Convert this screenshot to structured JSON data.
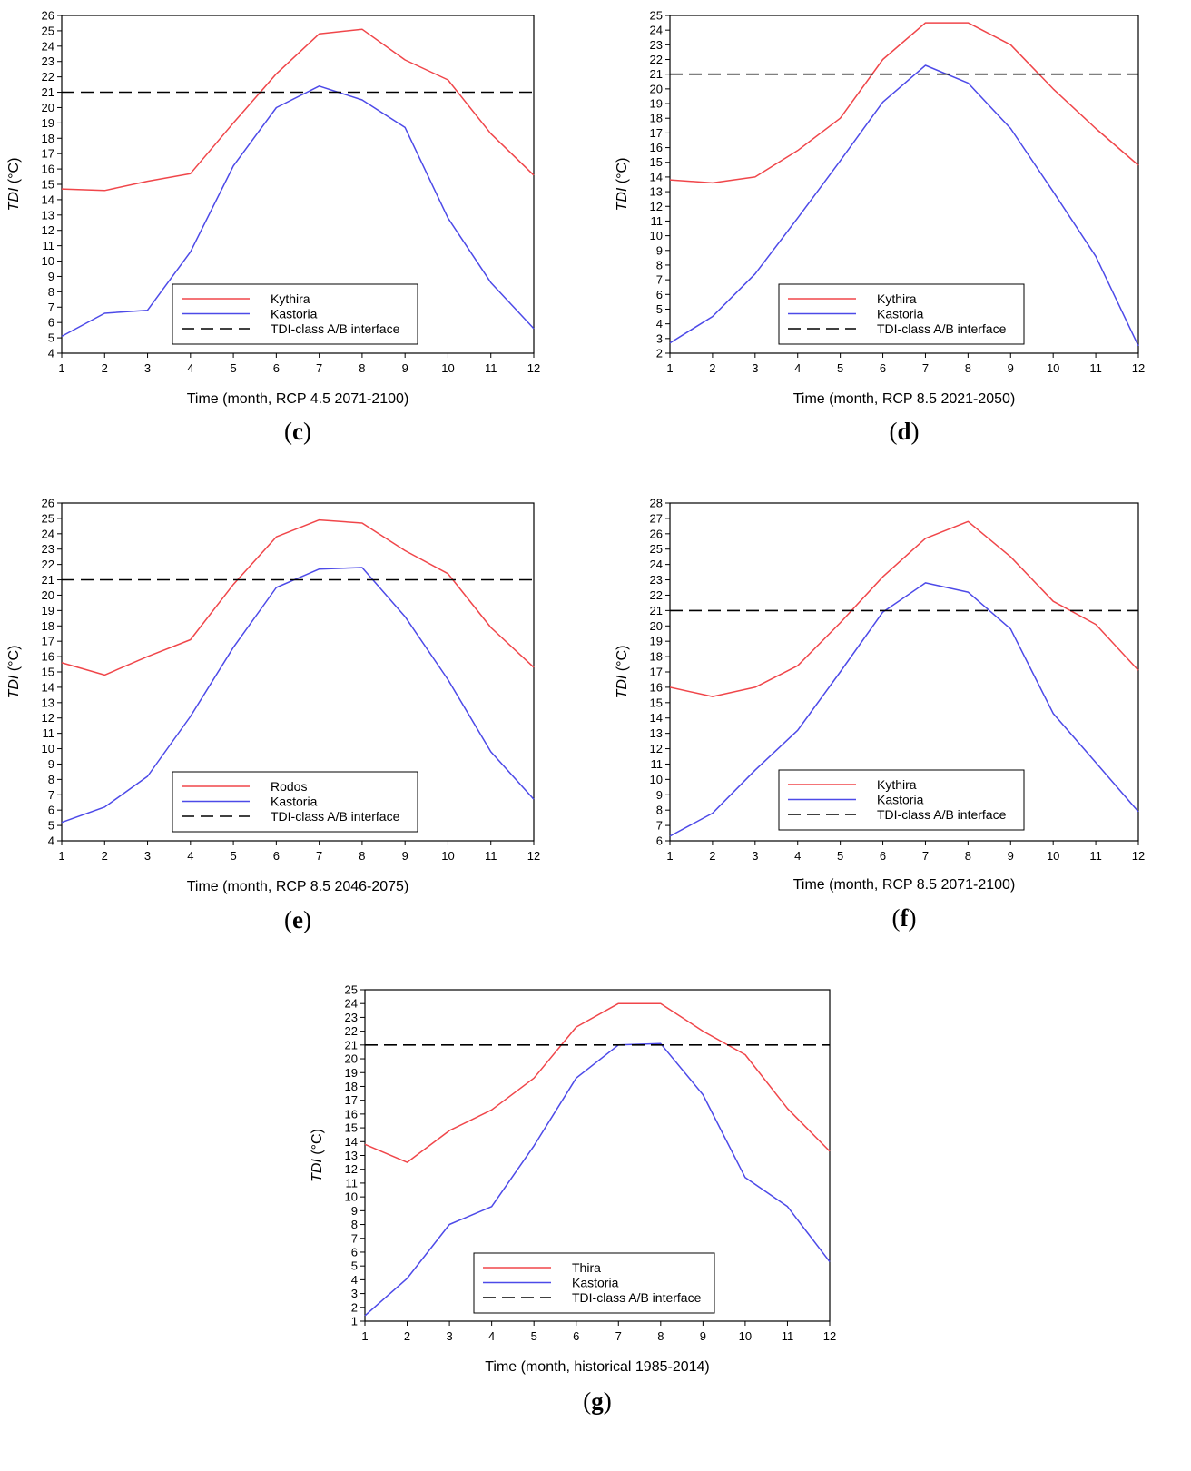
{
  "figure": {
    "ylabel_var": "TDI",
    "ylabel_unit": " (°C)",
    "threshold_value": 21
  },
  "colors": {
    "series1": "#f0464a",
    "series2": "#4d4ae8",
    "threshold": "#000000",
    "axes": "#000000",
    "background": "#ffffff"
  },
  "chart_data": [
    {
      "type": "line",
      "panel": "c",
      "caption_letter": "c",
      "title": "",
      "xlabel": "Time (month, RCP 4.5 2071-2100)",
      "ylabel": "TDI (°C)",
      "x": [
        1,
        2,
        3,
        4,
        5,
        6,
        7,
        8,
        9,
        10,
        11,
        12
      ],
      "ylim": [
        4,
        26
      ],
      "legend_position": "bottom-center",
      "series": [
        {
          "name": "Kythira",
          "style": "solid",
          "color_key": "series1",
          "values": [
            14.7,
            14.6,
            15.2,
            15.7,
            19.0,
            22.2,
            24.8,
            25.1,
            23.1,
            21.8,
            18.3,
            15.6
          ]
        },
        {
          "name": "Kastoria",
          "style": "solid",
          "color_key": "series2",
          "values": [
            5.1,
            6.6,
            6.8,
            10.6,
            16.2,
            20.0,
            21.4,
            20.5,
            18.7,
            12.8,
            8.6,
            5.6
          ]
        },
        {
          "name": "TDI-class A/B interface",
          "style": "dashed",
          "color_key": "threshold",
          "values": [
            21,
            21,
            21,
            21,
            21,
            21,
            21,
            21,
            21,
            21,
            21,
            21
          ]
        }
      ]
    },
    {
      "type": "line",
      "panel": "d",
      "caption_letter": "d",
      "title": "",
      "xlabel": "Time (month, RCP 8.5 2021-2050)",
      "ylabel": "TDI (°C)",
      "x": [
        1,
        2,
        3,
        4,
        5,
        6,
        7,
        8,
        9,
        10,
        11,
        12
      ],
      "ylim": [
        2,
        25
      ],
      "legend_position": "bottom-center",
      "series": [
        {
          "name": "Kythira",
          "style": "solid",
          "color_key": "series1",
          "values": [
            13.8,
            13.6,
            14.0,
            15.8,
            18.0,
            22.0,
            24.5,
            24.5,
            23.0,
            20.0,
            17.3,
            14.8
          ]
        },
        {
          "name": "Kastoria",
          "style": "solid",
          "color_key": "series2",
          "values": [
            2.7,
            4.5,
            7.4,
            11.2,
            15.1,
            19.1,
            21.6,
            20.4,
            17.3,
            13.0,
            8.6,
            2.5
          ]
        },
        {
          "name": "TDI-class A/B interface",
          "style": "dashed",
          "color_key": "threshold",
          "values": [
            21,
            21,
            21,
            21,
            21,
            21,
            21,
            21,
            21,
            21,
            21,
            21
          ]
        }
      ]
    },
    {
      "type": "line",
      "panel": "e",
      "caption_letter": "e",
      "title": "",
      "xlabel": "Time (month, RCP 8.5 2046-2075)",
      "ylabel": "TDI (°C)",
      "x": [
        1,
        2,
        3,
        4,
        5,
        6,
        7,
        8,
        9,
        10,
        11,
        12
      ],
      "ylim": [
        4,
        26
      ],
      "legend_position": "bottom-center",
      "series": [
        {
          "name": "Rodos",
          "style": "solid",
          "color_key": "series1",
          "values": [
            15.6,
            14.8,
            16.0,
            17.1,
            20.7,
            23.8,
            24.9,
            24.7,
            22.9,
            21.4,
            17.9,
            15.3
          ]
        },
        {
          "name": "Kastoria",
          "style": "solid",
          "color_key": "series2",
          "values": [
            5.2,
            6.2,
            8.2,
            12.1,
            16.6,
            20.5,
            21.7,
            21.8,
            18.6,
            14.5,
            9.8,
            6.7
          ]
        },
        {
          "name": "TDI-class A/B interface",
          "style": "dashed",
          "color_key": "threshold",
          "values": [
            21,
            21,
            21,
            21,
            21,
            21,
            21,
            21,
            21,
            21,
            21,
            21
          ]
        }
      ]
    },
    {
      "type": "line",
      "panel": "f",
      "caption_letter": "f",
      "title": "",
      "xlabel": "Time (month, RCP 8.5 2071-2100)",
      "ylabel": "TDI (°C)",
      "x": [
        1,
        2,
        3,
        4,
        5,
        6,
        7,
        8,
        9,
        10,
        11,
        12
      ],
      "ylim": [
        6,
        28
      ],
      "legend_position": "bottom-center",
      "series": [
        {
          "name": "Kythira",
          "style": "solid",
          "color_key": "series1",
          "values": [
            16.0,
            15.4,
            16.0,
            17.4,
            20.2,
            23.2,
            25.7,
            26.8,
            24.5,
            21.6,
            20.1,
            17.1
          ]
        },
        {
          "name": "Kastoria",
          "style": "solid",
          "color_key": "series2",
          "values": [
            6.3,
            7.8,
            10.6,
            13.2,
            17.0,
            20.9,
            22.8,
            22.2,
            19.8,
            14.3,
            11.1,
            7.9
          ]
        },
        {
          "name": "TDI-class A/B interface",
          "style": "dashed",
          "color_key": "threshold",
          "values": [
            21,
            21,
            21,
            21,
            21,
            21,
            21,
            21,
            21,
            21,
            21,
            21
          ]
        }
      ]
    },
    {
      "type": "line",
      "panel": "g",
      "caption_letter": "g",
      "title": "",
      "xlabel": "Time (month, historical 1985-2014)",
      "ylabel": "TDI (°C)",
      "x": [
        1,
        2,
        3,
        4,
        5,
        6,
        7,
        8,
        9,
        10,
        11,
        12
      ],
      "ylim": [
        1,
        25
      ],
      "legend_position": "bottom-center",
      "series": [
        {
          "name": "Thira",
          "style": "solid",
          "color_key": "series1",
          "values": [
            13.8,
            12.5,
            14.8,
            16.3,
            18.6,
            22.3,
            24.0,
            24.0,
            22.0,
            20.3,
            16.4,
            13.3
          ]
        },
        {
          "name": "Kastoria",
          "style": "solid",
          "color_key": "series2",
          "values": [
            1.4,
            4.1,
            8.0,
            9.3,
            13.7,
            18.6,
            21.0,
            21.1,
            17.4,
            11.4,
            9.3,
            5.3
          ]
        },
        {
          "name": "TDI-class A/B interface",
          "style": "dashed",
          "color_key": "threshold",
          "values": [
            21,
            21,
            21,
            21,
            21,
            21,
            21,
            21,
            21,
            21,
            21,
            21
          ]
        }
      ]
    }
  ]
}
